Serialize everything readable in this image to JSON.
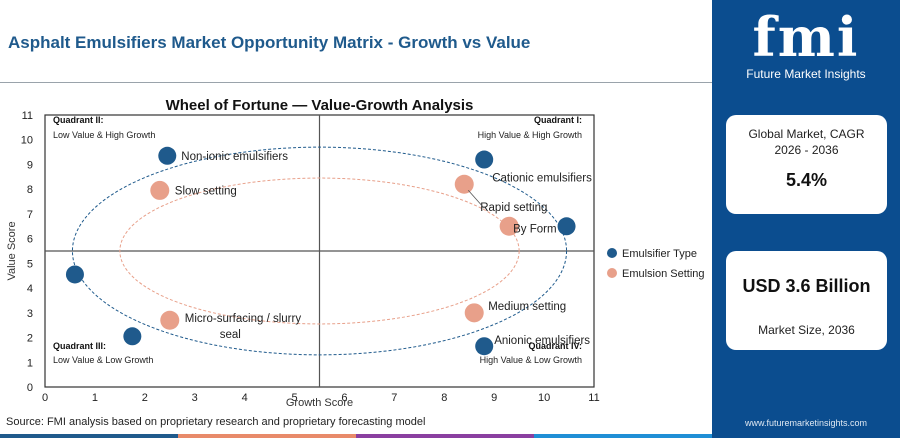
{
  "page": {
    "title": "Asphalt Emulsifiers Market Opportunity Matrix - Growth vs Value",
    "source": "Source: FMI analysis based on proprietary research and proprietary forecasting model",
    "footer_colors": [
      "#1f5a8c",
      "#e88a6a",
      "#8a3fa0",
      "#1f8fd6"
    ]
  },
  "sidebar": {
    "logo": "fmi",
    "logo_subtitle": "Future Market Insights",
    "cagr_label": "Global Market, CAGR 2026 - 2036",
    "cagr_value": "5.4%",
    "size_value": "USD 3.6 Billion",
    "size_label": "Market Size, 2036",
    "url": "www.futuremarketinsights.com"
  },
  "chart_data": {
    "type": "scatter",
    "title": "Wheel of Fortune — Value-Growth Analysis",
    "xlabel": "Growth Score",
    "ylabel": "Value Score",
    "xlim": [
      0,
      11
    ],
    "ylim": [
      0,
      11
    ],
    "xticks": [
      0,
      1,
      2,
      3,
      4,
      5,
      6,
      7,
      8,
      9,
      10,
      11
    ],
    "yticks": [
      0,
      1,
      2,
      3,
      4,
      5,
      6,
      7,
      8,
      9,
      10,
      11
    ],
    "divider_x": 5.5,
    "divider_y": 5.5,
    "quadrants": [
      {
        "title": "Quadrant II:",
        "subtitle": "Low Value & High Growth",
        "position": "top-left"
      },
      {
        "title": "Quadrant I:",
        "subtitle": "High Value & High Growth",
        "position": "top-right"
      },
      {
        "title": "Quadrant III:",
        "subtitle": "Low Value & Low Growth",
        "position": "bottom-left"
      },
      {
        "title": "Quadrant IV:",
        "subtitle": "High Value & Low Growth",
        "position": "bottom-right"
      }
    ],
    "legend_position": "right",
    "series": [
      {
        "name": "Emulsifier Type",
        "color": "#1f5a8c",
        "points": [
          {
            "x": 2.45,
            "y": 9.35,
            "label": "Non-ionic emulsifiers"
          },
          {
            "x": 8.8,
            "y": 9.2,
            "label": "Cationic emulsifiers"
          },
          {
            "x": 10.45,
            "y": 6.5,
            "label": "By Form"
          },
          {
            "x": 0.6,
            "y": 4.55,
            "label": ""
          },
          {
            "x": 1.75,
            "y": 2.05,
            "label": ""
          },
          {
            "x": 8.8,
            "y": 1.65,
            "label": "Anionic emulsifiers"
          }
        ]
      },
      {
        "name": "Emulsion Setting",
        "color": "#e8a08a",
        "points": [
          {
            "x": 2.3,
            "y": 7.95,
            "label": "Slow setting"
          },
          {
            "x": 8.4,
            "y": 8.2,
            "label": "Rapid setting"
          },
          {
            "x": 9.3,
            "y": 6.5,
            "label": ""
          },
          {
            "x": 8.6,
            "y": 3.0,
            "label": "Medium setting"
          },
          {
            "x": 2.5,
            "y": 2.7,
            "label": "Micro-surfacing / slurry seal"
          }
        ]
      }
    ],
    "ellipses": [
      {
        "series": "Emulsifier Type",
        "cx": 5.5,
        "cy": 5.5,
        "rx": 4.95,
        "ry": 4.2
      },
      {
        "series": "Emulsion Setting",
        "cx": 5.5,
        "cy": 5.5,
        "rx": 4.0,
        "ry": 2.95
      }
    ]
  }
}
